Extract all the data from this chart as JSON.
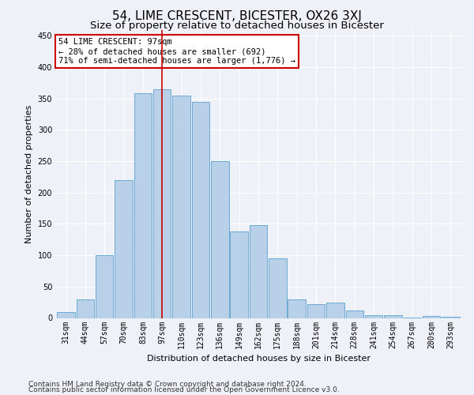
{
  "title": "54, LIME CRESCENT, BICESTER, OX26 3XJ",
  "subtitle": "Size of property relative to detached houses in Bicester",
  "xlabel": "Distribution of detached houses by size in Bicester",
  "ylabel": "Number of detached properties",
  "categories": [
    "31sqm",
    "44sqm",
    "57sqm",
    "70sqm",
    "83sqm",
    "97sqm",
    "110sqm",
    "123sqm",
    "136sqm",
    "149sqm",
    "162sqm",
    "175sqm",
    "188sqm",
    "201sqm",
    "214sqm",
    "228sqm",
    "241sqm",
    "254sqm",
    "267sqm",
    "280sqm",
    "293sqm"
  ],
  "values": [
    10,
    30,
    100,
    220,
    358,
    365,
    355,
    345,
    250,
    138,
    148,
    95,
    30,
    22,
    25,
    12,
    5,
    5,
    1,
    3,
    2
  ],
  "bar_color": "#b8d0e8",
  "bar_edge_color": "#6aaad4",
  "highlight_index": 5,
  "highlight_line_color": "#cc0000",
  "annotation_text": "54 LIME CRESCENT: 97sqm\n← 28% of detached houses are smaller (692)\n71% of semi-detached houses are larger (1,776) →",
  "annotation_box_color": "#ffffff",
  "annotation_box_edge": "#cc0000",
  "ylim": [
    0,
    460
  ],
  "yticks": [
    0,
    50,
    100,
    150,
    200,
    250,
    300,
    350,
    400,
    450
  ],
  "footer1": "Contains HM Land Registry data © Crown copyright and database right 2024.",
  "footer2": "Contains public sector information licensed under the Open Government Licence v3.0.",
  "bg_color": "#eef2f8",
  "grid_color": "#ffffff",
  "title_fontsize": 11,
  "subtitle_fontsize": 9.5,
  "axis_label_fontsize": 8,
  "tick_fontsize": 7,
  "footer_fontsize": 6.5,
  "annotation_fontsize": 7.5
}
